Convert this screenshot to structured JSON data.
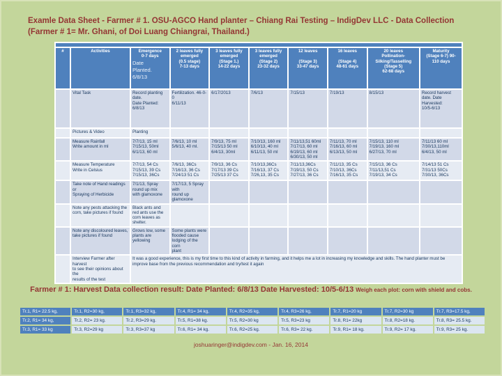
{
  "title": {
    "text": "Examle Data Sheet - Farmer # 1. OSU-AGCO Hand planter – Chiang Rai Testing – IndigDev LLC - Data Collection (Farmer # 1= Mr. Ghani, of Doi Luang Chiangrai, Thailand.)"
  },
  "colors": {
    "background": "#c3d69b",
    "header_blue": "#4f81bd",
    "row_dark": "#d2d9e8",
    "row_light": "#e6ebf3",
    "title_red": "#943634",
    "cell_text": "#17365d"
  },
  "main_table": {
    "headers": [
      {
        "label": "#"
      },
      {
        "label": "Activities"
      },
      {
        "label": "Emergence\n0-7 days",
        "sub": "Date\nPlanted.\n6/8/13"
      },
      {
        "label": "2 leaves fully\nemerged\n(0.5 stage)\n7-13 days"
      },
      {
        "label": "3 leaves fully\nemerged\n(Stage 1.)\n14-22 days"
      },
      {
        "label": "3 leaves fully\nemerged\n(Stage 2)\n23-32 days"
      },
      {
        "label": "12 leaves\n\n(Stage 3)\n33-47 days"
      },
      {
        "label": "16 leaves\n\n(Stage 4)\n48-61 days"
      },
      {
        "label": "20 leaves\nPollination-\nSilking/Tasselling\n(Stage 5)\n62-68 days"
      },
      {
        "label": "Maturity\n(Stage 6-7) 90-\n110 days"
      }
    ],
    "rows": [
      {
        "activity": "Vital Task",
        "cells": [
          "Record planting date.\nDate Planted:\n6/8/13",
          "Fertilization. 46-0-0\n6/11/13",
          "6/17/2013",
          "7/6/13",
          "7/15/13",
          "7/19/13",
          "8/15/13",
          "Record harvest date. Date Harvested:\n10/5-6/13"
        ]
      },
      {
        "activity": "Pictures & Video",
        "cells": [
          "Planting",
          "",
          "",
          "",
          "",
          "",
          "",
          ""
        ]
      },
      {
        "activity": "Measure Rainfall\nWrite amount in ml",
        "cells": [
          "7/7/13, 15 ml\n7/15/13, 50ml\n6/1/13, 60 ml",
          "7/6/13, 10 ml\n5/6/13, 40 ml.",
          "7/9/13, 75 ml\n7/15/13 50 ml\n6/4/13, 30ml",
          "7/10/13, 160 ml\n6/10/13, 40 ml\n6/11/13, 50 ml",
          "7/11/13,51 60ml\n7/17/13, 60 ml\n6/19/13, 60 ml\n6/30/13, 50 ml",
          "7/11/13, 70 ml\n7/16/13, 60 ml\n6/13/13, 50 ml",
          "7/15/13, 110 ml\n7/19/13, 160 ml\n6/27/13, 70 ml",
          "7/11/13 60 ml\n7/30/13,110ml\n6/4/13, 50 ml"
        ]
      },
      {
        "activity": "Measure Temperature\nWrite in Celsius",
        "cells": [
          "7/7/13, 54 Cs\n7/15/13, 39 Cs\n7/15/13, 36Cs",
          "7/6/13, 36Cs\n7/16/13, 36 Cs\n7/24/13 51 Cs",
          "7/9/13, 36 Cs\n7/17/13 39 Cs\n7/25/13 37 Cs",
          "7/10/13,36Cs\n7/16/13, 37 Cs\n7/26,13, 35 Cs",
          "7/11/13,36Cs\n7/19/13, 50 Cs\n7/27/13, 36 Cs",
          "7/11/13, 35 Cs\n7/10/13, 36Cs\n7/16/13, 35 Cs",
          "7/15/13, 36 Cs\n7/11/13,51 Cs\n7/19/13, 34 Cs",
          "7/14/13 51 Cs\n7/31/13 50Cs\n7/30/13, 36Cs"
        ]
      },
      {
        "activity": "Take note of Hand readings or\nSpraying of Herbicide",
        "cells": [
          "7/1/13, Spray\nround up mix\nwith glamoxone",
          "7/17/13, 5 Spray with\nround up\nglamoxone",
          "",
          "",
          "",
          "",
          "",
          ""
        ]
      },
      {
        "activity": "Note any pests attacking the\ncorn, take pictures if found",
        "cells": [
          "Black ants and\nred ants use the\ncorn leaves as\nshelter.",
          "",
          "",
          "",
          "",
          "",
          "",
          ""
        ]
      },
      {
        "activity": "Note any discoloured leaves,\ntake pictures if found",
        "cells": [
          "Grows low, some\nplants are\nyellowing",
          "Some plants were\nflooded cause\nlodging of the corn\nplant",
          "",
          "",
          "",
          "",
          "",
          ""
        ]
      },
      {
        "activity": "Interview Farmer after harvest\nto see their opinions about the\nresults of the test",
        "merged": "It was a good experience, this is my first time to this kind of activity in farming, and it helps me a lot in increasing my knowledge and skills. The hand planter must be improve base from the previous recommendation and try/test it again"
      }
    ]
  },
  "harvest_summary": {
    "main": "Farmer # 1: Harvest Data collection result: Date Planted: 6/8/13 Date Harvested: 10/5-6/13 ",
    "note": "Weigh each plot: corn with shield and cobs."
  },
  "harvest_table": {
    "rows": [
      [
        "Tr.1, R1= 22.5 kg,",
        "Tr.1, R2=30 kg,",
        "Tr.1, R3=32 kg,",
        "Tr.4, R1= 34 kg,",
        "Tr.4, R2=35 kg,",
        "Tr.4, R3=26 kg,",
        "Tr.7, R1=20 kg",
        "Tr.7, R2=30 kg",
        "Tr.7, R3=17.5 kg,"
      ],
      [
        "Tr.2, R1= 34 kg,",
        "Tr.2, R2= 23 kg.",
        "Tr.2, R3=29 kg.",
        "Tr.5, R1=38 kg.",
        "Tr.5, R2=30 kg",
        "Tr.5, R3=23 kg",
        "Tr.8, R1= 22kg",
        "Tr.8, R2=18 kg.",
        "Tr.8, R3= 25.5 kg."
      ],
      [
        "Tr.3, R1= 33 kg",
        "Tr.3, R2=29 kg",
        "Tr.3, R3=37 kg",
        "Tr.6, R1= 34 kg.",
        "Tr.6, R2=25 kg.",
        "Tr.6, R3= 22 kg.",
        "Tr.9, R1= 18 kg.",
        "Tr.9, R2= 17 kg.",
        "Tr.9, R3= 25 kg."
      ]
    ]
  },
  "footer": {
    "text": "joshuaringer@indigdev.com - Jan. 16, 2014"
  }
}
